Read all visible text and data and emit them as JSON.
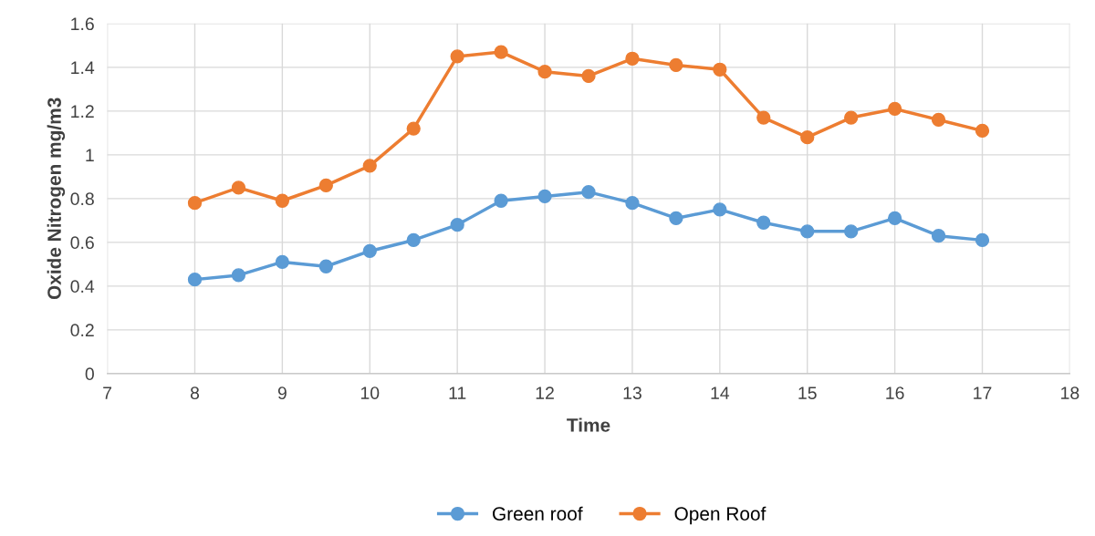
{
  "chart_data": {
    "type": "line",
    "xlabel": "Time",
    "ylabel": "Oxide Nitrogen mg/m3",
    "x": [
      8,
      8.5,
      9,
      9.5,
      10,
      10.5,
      11,
      11.5,
      12,
      12.5,
      13,
      13.5,
      14,
      14.5,
      15,
      15.5,
      16,
      16.5,
      17
    ],
    "series": [
      {
        "name": "Green roof",
        "color": "#5b9bd5",
        "values": [
          0.43,
          0.45,
          0.51,
          0.49,
          0.56,
          0.61,
          0.68,
          0.79,
          0.81,
          0.83,
          0.78,
          0.71,
          0.75,
          0.69,
          0.65,
          0.65,
          0.71,
          0.63,
          0.61
        ]
      },
      {
        "name": "Open Roof",
        "color": "#ed7d31",
        "values": [
          0.78,
          0.85,
          0.79,
          0.86,
          0.95,
          1.12,
          1.45,
          1.47,
          1.38,
          1.36,
          1.44,
          1.41,
          1.39,
          1.17,
          1.08,
          1.17,
          1.21,
          1.16,
          1.11
        ]
      }
    ],
    "xlim": [
      7,
      18
    ],
    "xticks": [
      7,
      8,
      9,
      10,
      11,
      12,
      13,
      14,
      15,
      16,
      17,
      18
    ],
    "ylim": [
      0,
      1.6
    ],
    "yticks": [
      0,
      0.2,
      0.4,
      0.6,
      0.8,
      1,
      1.2,
      1.4,
      1.6
    ],
    "grid": true,
    "legend": "bottom",
    "marker": "circle",
    "line_style": "solid"
  }
}
